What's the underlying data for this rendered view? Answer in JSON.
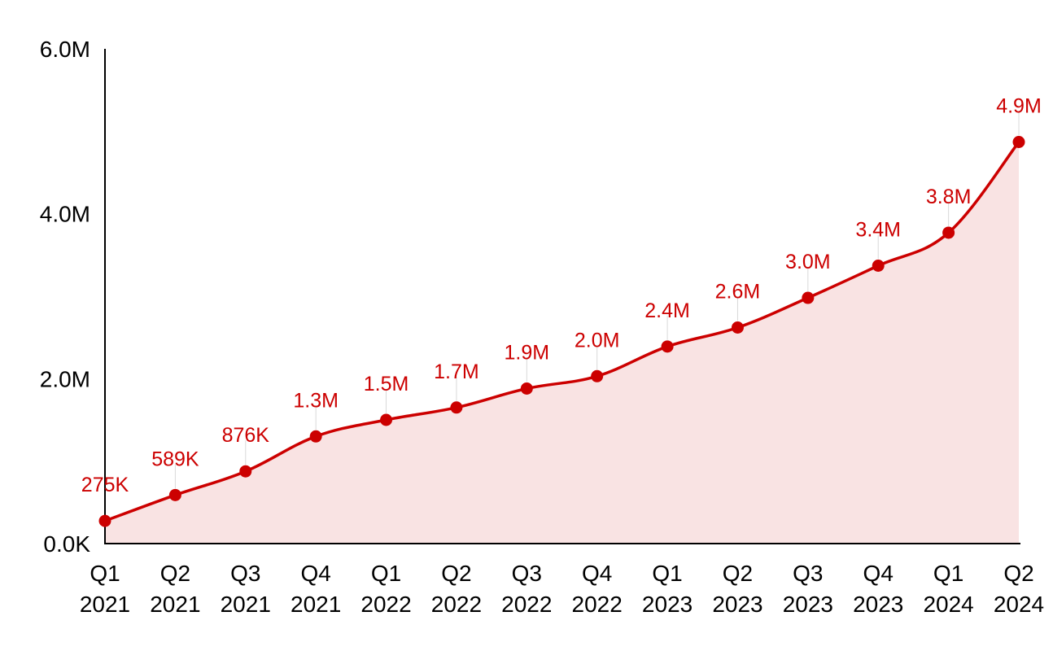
{
  "chart_data": {
    "type": "area",
    "title": "",
    "xlabel": "",
    "ylabel": "",
    "ylim": [
      0,
      6000000
    ],
    "yticks": [
      {
        "value": 0,
        "label": "0.0K"
      },
      {
        "value": 2000000,
        "label": "2.0M"
      },
      {
        "value": 4000000,
        "label": "4.0M"
      },
      {
        "value": 6000000,
        "label": "6.0M"
      }
    ],
    "categories": [
      {
        "q": "Q1",
        "year": "2021"
      },
      {
        "q": "Q2",
        "year": "2021"
      },
      {
        "q": "Q3",
        "year": "2021"
      },
      {
        "q": "Q4",
        "year": "2021"
      },
      {
        "q": "Q1",
        "year": "2022"
      },
      {
        "q": "Q2",
        "year": "2022"
      },
      {
        "q": "Q3",
        "year": "2022"
      },
      {
        "q": "Q4",
        "year": "2022"
      },
      {
        "q": "Q1",
        "year": "2023"
      },
      {
        "q": "Q2",
        "year": "2023"
      },
      {
        "q": "Q3",
        "year": "2023"
      },
      {
        "q": "Q4",
        "year": "2023"
      },
      {
        "q": "Q1",
        "year": "2024"
      },
      {
        "q": "Q2",
        "year": "2024"
      }
    ],
    "series": [
      {
        "values": [
          275000,
          589000,
          876000,
          1300000,
          1500000,
          1650000,
          1880000,
          2030000,
          2390000,
          2620000,
          2980000,
          3370000,
          3770000,
          4870000
        ],
        "labels": [
          "275K",
          "589K",
          "876K",
          "1.3M",
          "1.5M",
          "1.7M",
          "1.9M",
          "2.0M",
          "2.4M",
          "2.6M",
          "3.0M",
          "3.4M",
          "3.8M",
          "4.9M"
        ]
      }
    ],
    "grid": false,
    "legend": "none",
    "colors": {
      "line": "#cc0000",
      "fill": "#f9e3e3",
      "label": "#cc0000",
      "axis": "#000000"
    }
  }
}
